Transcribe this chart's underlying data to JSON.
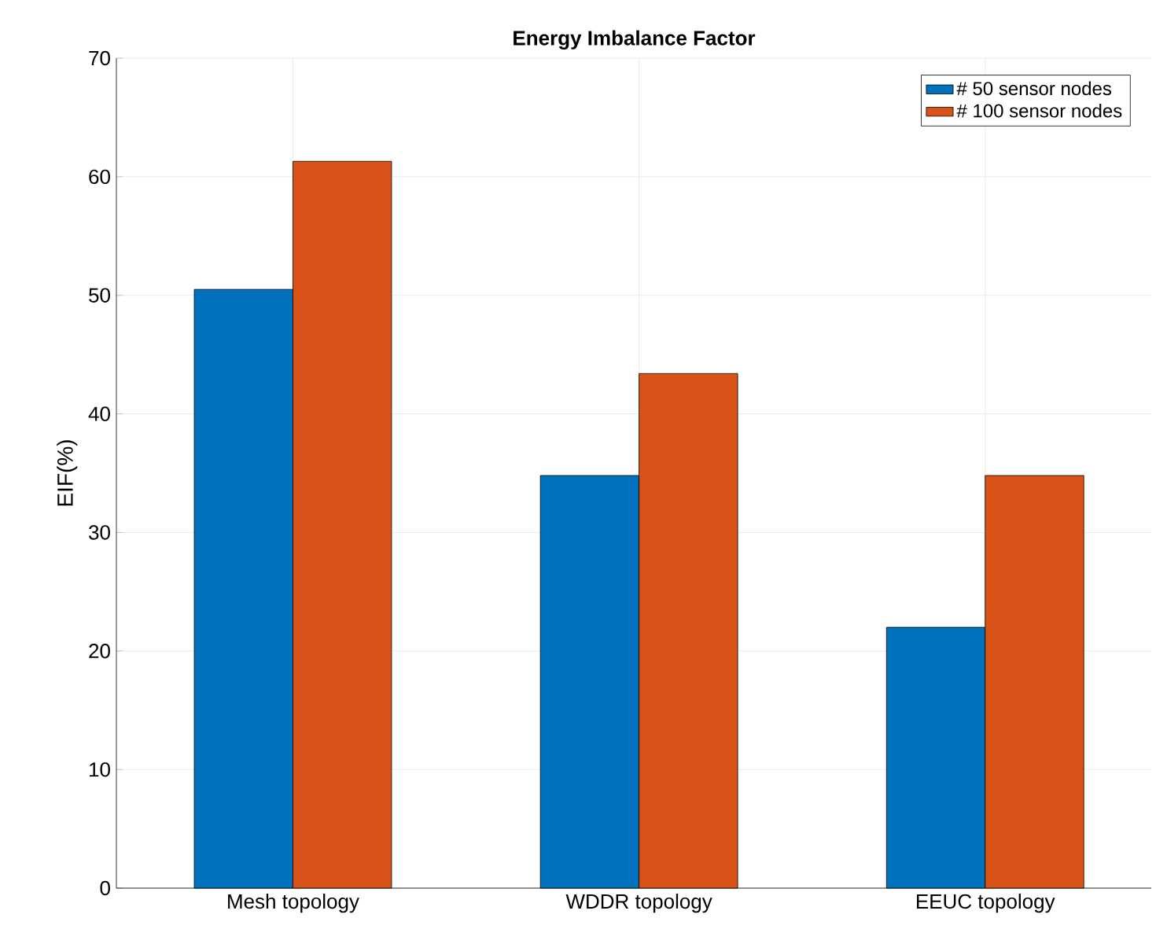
{
  "chart_data": {
    "type": "bar",
    "title": "Energy Imbalance Factor",
    "ylabel": "EIF(%)",
    "categories": [
      "Mesh topology",
      "WDDR topology",
      "EEUC topology"
    ],
    "series": [
      {
        "name": "# 50 sensor nodes",
        "color": "#0072bd",
        "values": [
          50.5,
          34.8,
          22.0
        ]
      },
      {
        "name": "# 100 sensor nodes",
        "color": "#d95319",
        "values": [
          61.3,
          43.4,
          34.8
        ]
      }
    ],
    "ylim": [
      0,
      70
    ],
    "yticks": [
      0,
      10,
      20,
      30,
      40,
      50,
      60,
      70
    ],
    "grid": true,
    "legend": "top right"
  }
}
